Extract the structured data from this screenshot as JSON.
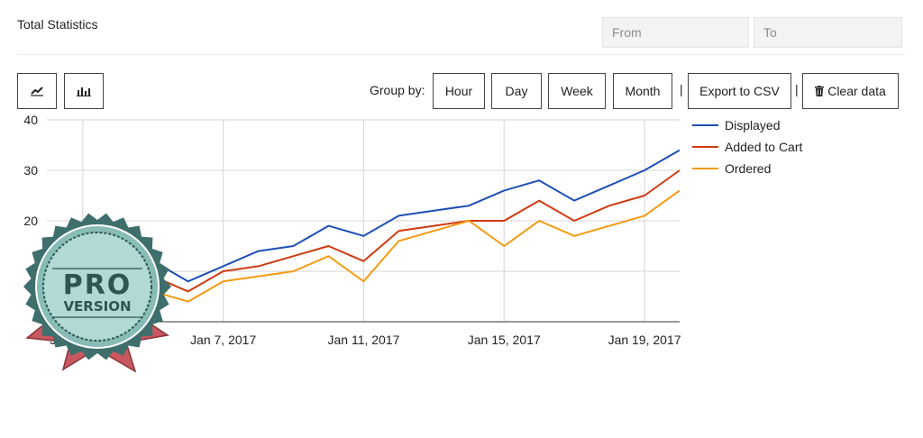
{
  "header": {
    "title": "Total Statistics"
  },
  "filters": {
    "from_placeholder": "From",
    "to_placeholder": "To"
  },
  "toolbar": {
    "line_icon": "line-chart-icon",
    "bar_icon": "bar-chart-icon",
    "group_by_label": "Group by:",
    "hour_label": "Hour",
    "day_label": "Day",
    "week_label": "Week",
    "month_label": "Month",
    "separator": "|",
    "export_label": "Export to CSV",
    "trash_icon": "trash-icon",
    "clear_label": "Clear data"
  },
  "badge": {
    "line1": "PRO",
    "line2": "VERSION"
  },
  "chart_data": {
    "type": "line",
    "x": [
      "Jan 3, 2017",
      "Jan 4, 2017",
      "Jan 5, 2017",
      "Jan 6, 2017",
      "Jan 7, 2017",
      "Jan 8, 2017",
      "Jan 9, 2017",
      "Jan 10, 2017",
      "Jan 11, 2017",
      "Jan 12, 2017",
      "Jan 13, 2017",
      "Jan 14, 2017",
      "Jan 15, 2017",
      "Jan 16, 2017",
      "Jan 17, 2017",
      "Jan 18, 2017",
      "Jan 19, 2017",
      "Jan 20, 2017"
    ],
    "x_ticks": [
      "Jan 3, 2017",
      "Jan 7, 2017",
      "Jan 11, 2017",
      "Jan 15, 2017",
      "Jan 19, 2017"
    ],
    "y_ticks": [
      20,
      30,
      40
    ],
    "ylim": [
      0,
      40
    ],
    "grid": true,
    "legend_position": "right",
    "series": [
      {
        "name": "Displayed",
        "color": "#1f4fb5",
        "values": [
          6,
          11,
          12,
          8,
          11,
          14,
          15,
          19,
          17,
          21,
          22,
          23,
          26,
          28,
          24,
          27,
          30,
          34
        ]
      },
      {
        "name": "Added to Cart",
        "color": "#d03a10",
        "values": [
          4,
          8,
          9,
          6,
          10,
          11,
          13,
          15,
          12,
          18,
          19,
          20,
          20,
          24,
          20,
          23,
          25,
          30
        ]
      },
      {
        "name": "Ordered",
        "color": "#f59a12",
        "values": [
          2,
          5,
          6,
          4,
          8,
          9,
          10,
          13,
          8,
          16,
          18,
          20,
          15,
          20,
          17,
          19,
          21,
          26
        ]
      }
    ]
  }
}
